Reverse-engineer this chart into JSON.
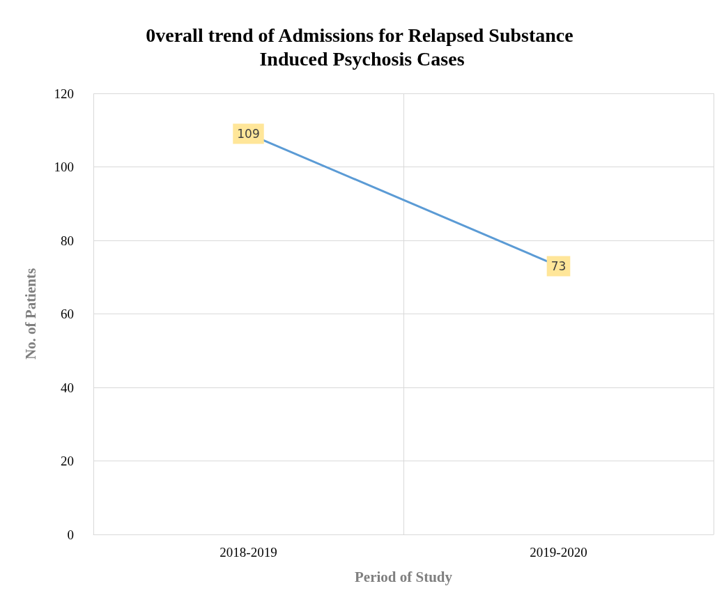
{
  "chart_data": {
    "type": "line",
    "title": "0verall trend of Admissions for Relapsed Substance Induced Psychosis Cases",
    "xlabel": "Period of Study",
    "ylabel": "No. of Patients",
    "categories": [
      "2018-2019",
      "2019-2020"
    ],
    "series": [
      {
        "color": "#5b9bd5",
        "values": [
          109,
          73
        ]
      }
    ],
    "ylim": [
      0,
      120
    ],
    "yticks": [
      0,
      20,
      40,
      60,
      80,
      100,
      120
    ],
    "grid": true,
    "line_style": "solid",
    "data_labels": true
  }
}
